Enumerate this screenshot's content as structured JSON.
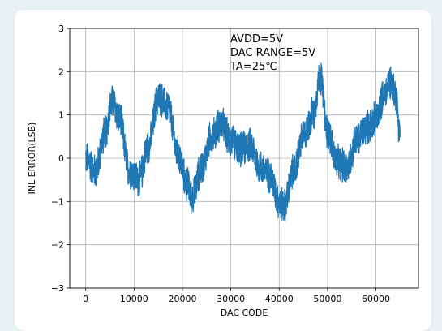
{
  "chart_data": {
    "type": "line",
    "title": "",
    "xlabel": "DAC CODE",
    "ylabel": "INL ERROR(LSB)",
    "xlim": [
      -3300,
      68800
    ],
    "ylim": [
      -3,
      3
    ],
    "xticks": [
      0,
      10000,
      20000,
      30000,
      40000,
      50000,
      60000
    ],
    "yticks": [
      -3,
      -2,
      -1,
      0,
      1,
      2,
      3
    ],
    "xtick_labels": [
      "0",
      "10000",
      "20000",
      "30000",
      "40000",
      "50000",
      "60000"
    ],
    "ytick_labels": [
      "−3",
      "−2",
      "−1",
      "0",
      "1",
      "2",
      "3"
    ],
    "grid": true,
    "line_color": "#1f77b4",
    "annotations": [
      "AVDD=5V",
      "DAC RANGE=5V",
      "TA=25℃"
    ],
    "series": [
      {
        "x": [
          0,
          2000,
          4000,
          5500,
          7000,
          9000,
          11000,
          13000,
          15000,
          17000,
          19000,
          21000,
          22000,
          24000,
          26000,
          28000,
          30000,
          32000,
          34000,
          36000,
          38000,
          40000,
          41000,
          43000,
          45000,
          47000,
          48500,
          50000,
          52000,
          54000,
          56000,
          58000,
          60000,
          61500,
          63000,
          64000,
          65000
        ],
        "y": [
          0.0,
          -0.3,
          0.6,
          1.3,
          0.9,
          -0.3,
          -0.5,
          0.3,
          1.4,
          1.2,
          0.1,
          -0.6,
          -0.9,
          -0.2,
          0.5,
          0.8,
          0.4,
          0.2,
          0.3,
          -0.2,
          -0.4,
          -1.0,
          -1.1,
          -0.3,
          0.5,
          1.0,
          1.9,
          0.6,
          -0.1,
          -0.2,
          0.4,
          0.7,
          0.9,
          1.4,
          1.8,
          1.5,
          0.6
        ],
        "noise_amplitude": 0.45
      }
    ]
  }
}
